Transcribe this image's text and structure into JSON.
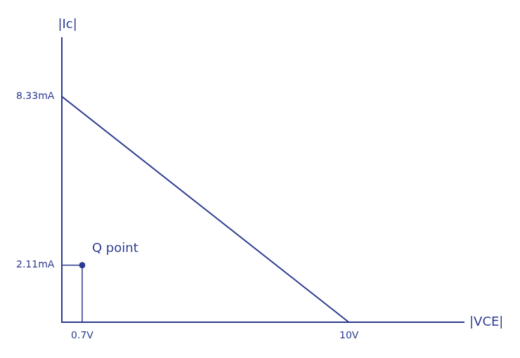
{
  "chart_data": {
    "type": "line",
    "x_label": "|VCE|",
    "y_label": "|Ic|",
    "series": [
      {
        "x": [
          0,
          10
        ],
        "values": [
          8.33,
          0
        ],
        "color": "#2b3a8f"
      }
    ],
    "annotations": [
      {
        "text": "Q point",
        "x": 0.7,
        "y": 2.11,
        "marker": "circle"
      }
    ],
    "xlim": [
      0,
      14
    ],
    "ylim": [
      0,
      10.5
    ],
    "xticks": [
      {
        "value": 0.7,
        "label": "0.7V"
      },
      {
        "value": 10,
        "label": "10V"
      }
    ],
    "yticks": [
      {
        "value": 2.11,
        "label": "2.11mA"
      },
      {
        "value": 8.33,
        "label": "8.33mA"
      }
    ],
    "color": "#2b3a8f",
    "grid": false
  }
}
